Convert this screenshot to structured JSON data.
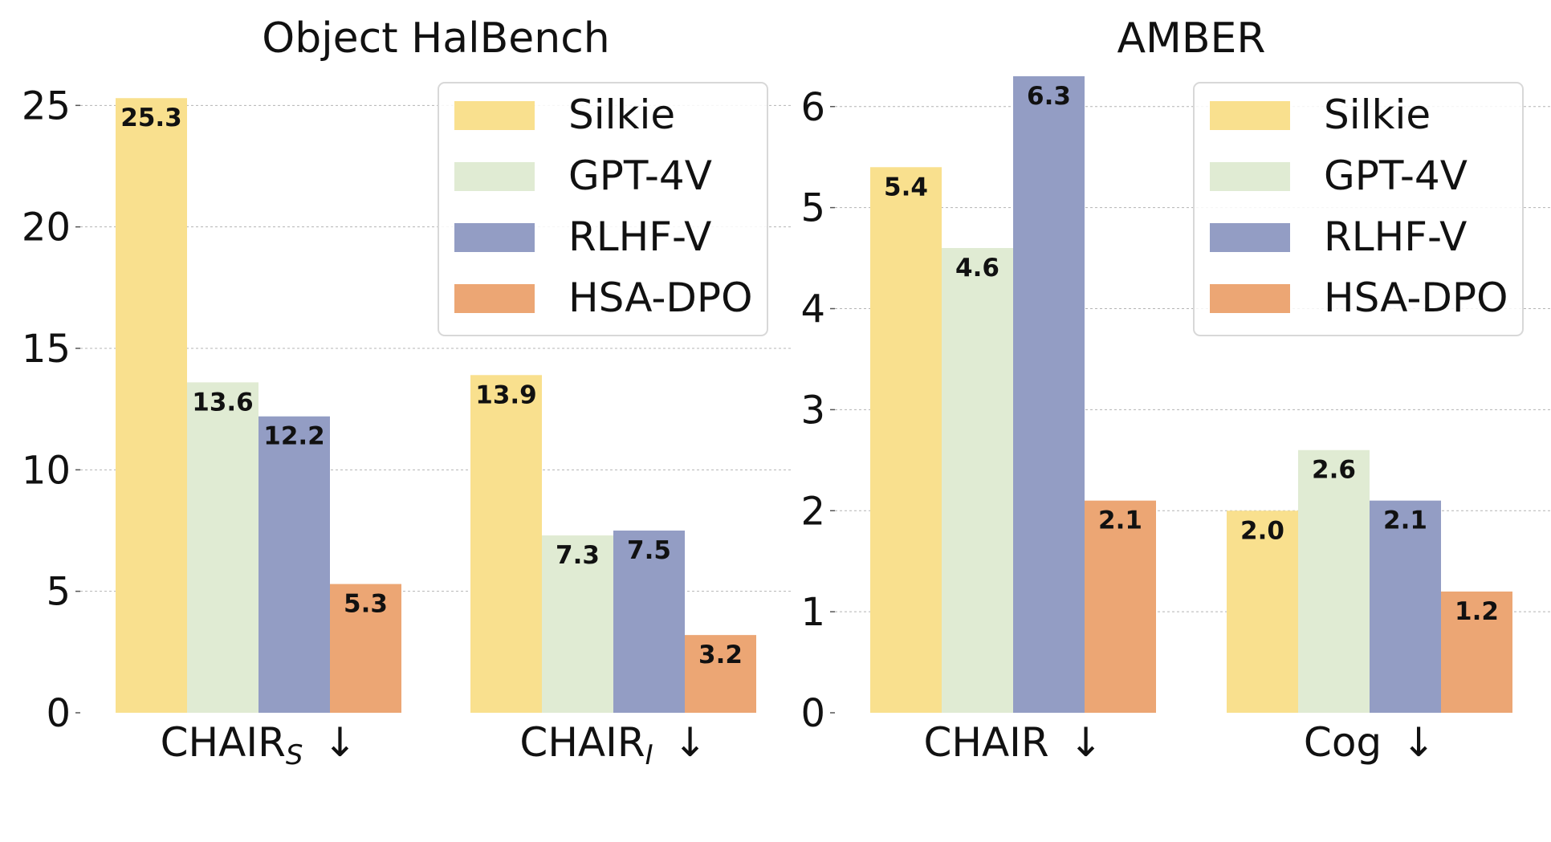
{
  "colors": {
    "Silkie": "#f9e08e",
    "GPT-4V": "#e0ebd3",
    "RLHF-V": "#939dc4",
    "HSA-DPO": "#eca674"
  },
  "chart_data": [
    {
      "type": "bar",
      "title": "Object HalBench",
      "categories": [
        {
          "main": "CHAIR",
          "sub": "S",
          "arrow": "↓"
        },
        {
          "main": "CHAIR",
          "sub": "I",
          "arrow": "↓"
        }
      ],
      "series": [
        {
          "name": "Silkie",
          "values": [
            25.3,
            13.9
          ]
        },
        {
          "name": "GPT-4V",
          "values": [
            13.6,
            7.3
          ]
        },
        {
          "name": "RLHF-V",
          "values": [
            12.2,
            7.5
          ]
        },
        {
          "name": "HSA-DPO",
          "values": [
            5.3,
            3.2
          ]
        }
      ],
      "yticks": [
        0,
        5,
        10,
        15,
        20,
        25
      ],
      "ylim": [
        0,
        26.2
      ],
      "grid": "horizontal dashed",
      "legend": "top-right"
    },
    {
      "type": "bar",
      "title": "AMBER",
      "categories": [
        {
          "main": "CHAIR",
          "sub": "",
          "arrow": "↓"
        },
        {
          "main": "Cog",
          "sub": "",
          "arrow": "↓"
        }
      ],
      "series": [
        {
          "name": "Silkie",
          "values": [
            5.4,
            2.0
          ]
        },
        {
          "name": "GPT-4V",
          "values": [
            4.6,
            2.6
          ]
        },
        {
          "name": "RLHF-V",
          "values": [
            6.3,
            2.1
          ]
        },
        {
          "name": "HSA-DPO",
          "values": [
            2.1,
            1.2
          ]
        }
      ],
      "yticks": [
        0,
        1,
        2,
        3,
        4,
        5,
        6
      ],
      "ylim": [
        0,
        6.3
      ],
      "grid": "horizontal dashed",
      "legend": "top-right"
    }
  ]
}
